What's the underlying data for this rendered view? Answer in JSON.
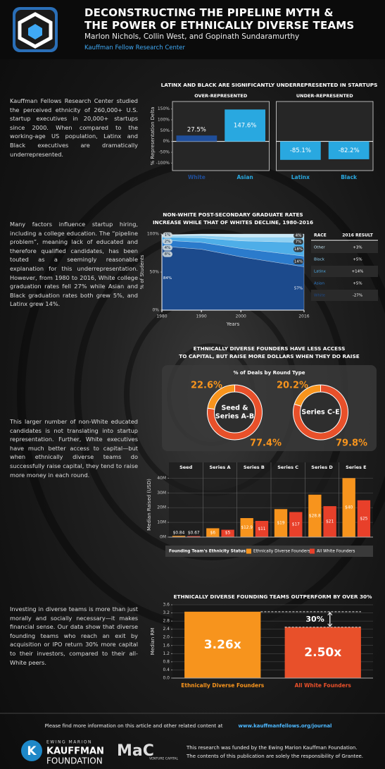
{
  "header": {
    "title_lines": [
      "DECONSTRUCTING THE PIPELINE MYTH &",
      "THE POWER OF ETHNICALLY DIVERSE TEAMS"
    ],
    "authors": "Marlon Nichols, Collin West, and Gopinath Sundaramurthy",
    "organization": "Kauffman Fellow Research Center"
  },
  "paragraphs": [
    "Kauffman Fellows Research Center studied the perceived ethnicity of 260,000+ U.S. startup executives in 20,000+ startups since 2000. When compared to the working-age US population, Latinx and Black executives are dramatically underrepresented.",
    "Many factors influence startup hiring, including a college education. The “pipeline problem”, meaning lack of educated and therefore qualified candidates, has been touted as a seemingly reasonable explanation for this underrepresentation. However, from 1980 to 2016, White college graduation rates fell 27% while Asian and Black graduation rates both grew 5%, and Latinx grew 14%.",
    "This larger number of non-White educated candidates is not translating into startup representation. Further, White executives have much better access to capital—but when ethnically diverse teams do successfully raise capital, they tend to raise more money in each round.",
    "Investing in diverse teams is more than just morally and socially necessary—it makes financial sense. Our data show that diverse founding teams who reach an exit by acquisition or IPO return 30% more capital to their investors, compared to their all-White peers."
  ],
  "chart_data": [
    {
      "type": "bar",
      "title": "LATINX AND BLACK ARE SIGNIFICANTLY UNDERREPRESENTED IN STARTUPS",
      "ylabel": "% Representation Delta",
      "ylim": [
        -115,
        165
      ],
      "yticks": [
        {
          "value": 150,
          "label": "150%"
        },
        {
          "value": 100,
          "label": "100%"
        },
        {
          "value": 50,
          "label": "50%"
        },
        {
          "value": 0,
          "label": "0%"
        },
        {
          "value": -50,
          "label": "-50%"
        },
        {
          "value": -100,
          "label": "-100%"
        }
      ],
      "grid": false,
      "panels": [
        {
          "title": "OVER-REPRESENTED",
          "categories": [
            "White",
            "Asian"
          ],
          "values": [
            27.5,
            147.6
          ],
          "value_labels": [
            "27.5%",
            "147.6%"
          ],
          "colors": [
            "#1f4e9a",
            "#29a8e0"
          ]
        },
        {
          "title": "UNDER-REPRESENTED",
          "categories": [
            "Latinx",
            "Black"
          ],
          "values": [
            -85.1,
            -82.2
          ],
          "value_labels": [
            "-85.1%",
            "-82.2%"
          ],
          "colors": [
            "#29a8e0",
            "#29a8e0"
          ]
        }
      ]
    },
    {
      "type": "area",
      "title_lines": [
        "NON-WHITE POST-SECONDARY GRADUATE RATES",
        "INCREASE WHILE THAT OF WHITES DECLINE, 1980-2016"
      ],
      "xlabel": "Years",
      "ylabel": "% of Students",
      "x": [
        1980,
        1990,
        2000,
        2016
      ],
      "xlim": [
        1980,
        2016
      ],
      "xticks": [
        1980,
        1990,
        2000,
        2016
      ],
      "ylim": [
        0,
        100
      ],
      "yticks": [
        {
          "value": 0,
          "label": "0%"
        },
        {
          "value": 50,
          "label": "50%"
        },
        {
          "value": 100,
          "label": "100%"
        }
      ],
      "series": [
        {
          "name": "Other",
          "color": "#c9e9f8",
          "values": [
            1,
            2,
            4,
            4
          ],
          "value_labels": [
            "1%",
            null,
            null,
            "4%"
          ]
        },
        {
          "name": "Black",
          "color": "#8fd0f2",
          "values": [
            2,
            3,
            5,
            7
          ],
          "value_labels": [
            "2%",
            null,
            null,
            "7%"
          ]
        },
        {
          "name": "Latinx",
          "color": "#4eaee8",
          "values": [
            4,
            6,
            10,
            18
          ],
          "value_labels": [
            "4%",
            null,
            null,
            "18%"
          ]
        },
        {
          "name": "Asian",
          "color": "#2b7bcc",
          "values": [
            8,
            9,
            11,
            14
          ],
          "value_labels": [
            "8%",
            null,
            null,
            "14%"
          ]
        },
        {
          "name": "White",
          "color": "#1c4a8c",
          "values": [
            84,
            80,
            70,
            57
          ],
          "value_labels": [
            "84%",
            null,
            null,
            "57%"
          ]
        }
      ],
      "table": {
        "columns": [
          "RACE",
          "2016 RESULT"
        ],
        "results": [
          "+3%",
          "+5%",
          "+14%",
          "+5%",
          "-27%"
        ]
      }
    },
    {
      "type": "pie",
      "title_lines": [
        "ETHNICALLY DIVERSE FOUNDERS HAVE LESS ACCESS",
        "TO CAPITAL, BUT RAISE MORE DOLLARS WHEN THEY DO RAISE"
      ],
      "subtitle": "% of Deals by Round Type",
      "colors": [
        "#f7941d",
        "#e8502a"
      ],
      "pies": [
        {
          "label_lines": [
            "Seed &",
            "Series A-B"
          ],
          "values": [
            22.6,
            77.4
          ],
          "value_labels": [
            "22.6%",
            "77.4%"
          ]
        },
        {
          "label_lines": [
            "Series C-E"
          ],
          "values": [
            20.2,
            79.8
          ],
          "value_labels": [
            "20.2%",
            "79.8%"
          ]
        }
      ]
    },
    {
      "type": "bar",
      "ylabel": "Median Raised (USD)",
      "categories": [
        "Seed",
        "Series A",
        "Series B",
        "Series C",
        "Series D",
        "Series E"
      ],
      "ylim": [
        0,
        44
      ],
      "yticks": [
        {
          "value": 0,
          "label": "0M"
        },
        {
          "value": 10,
          "label": "10M"
        },
        {
          "value": 20,
          "label": "20M"
        },
        {
          "value": 30,
          "label": "30M"
        },
        {
          "value": 40,
          "label": "40M"
        }
      ],
      "grid": true,
      "legend_title": "Founding Team's Ethnicity Status:",
      "series": [
        {
          "name": "Ethnically Diverse Founders",
          "color": "#f7941d",
          "values": [
            0.84,
            6,
            12.9,
            19,
            28.8,
            40
          ],
          "value_labels": [
            "$0.84",
            "$6",
            "$12.9",
            "$19",
            "$28.8",
            "$40"
          ]
        },
        {
          "name": "All White Founders",
          "color": "#e8402a",
          "values": [
            0.67,
            5,
            11,
            17,
            21,
            25
          ],
          "value_labels": [
            "$0.67",
            "$5",
            "$11",
            "$17",
            "$21",
            "$25"
          ]
        }
      ]
    },
    {
      "type": "bar",
      "title": "ETHNICALLY DIVERSE FOUNDING TEAMS OUTPERFORM BY OVER 30%",
      "ylabel": "Median RM",
      "categories": [
        "Ethnically Diverse Founders",
        "All White Founders"
      ],
      "values": [
        3.26,
        2.5
      ],
      "value_labels": [
        "3.26x",
        "2.50x"
      ],
      "colors": [
        "#f7941d",
        "#e8502a"
      ],
      "ylim": [
        0,
        3.6
      ],
      "yticks": [
        {
          "value": 0,
          "label": "0.0"
        },
        {
          "value": 0.4,
          "label": "0.4"
        },
        {
          "value": 0.8,
          "label": "0.8"
        },
        {
          "value": 1.2,
          "label": "1.2"
        },
        {
          "value": 1.6,
          "label": "1.6"
        },
        {
          "value": 2,
          "label": "2.0"
        },
        {
          "value": 2.4,
          "label": "2.4"
        },
        {
          "value": 2.8,
          "label": "2.8"
        },
        {
          "value": 3.2,
          "label": "3.2"
        },
        {
          "value": 3.6,
          "label": "3.6"
        }
      ],
      "grid": true,
      "annotation": "30%"
    }
  ],
  "footer": {
    "text": "Please find more information on this article and other related content at",
    "link": "www.kauffmanfellows.org/journal",
    "kauffman_logo": [
      "EWING MARION",
      "KAUFFMAN",
      "FOUNDATION"
    ],
    "mac_logo": {
      "mark": "MaC",
      "caption": "VENTURE CAPITAL"
    },
    "disclaimer": [
      "This research was funded by the Ewing Marion Kauffman Foundation.",
      "The contents of this publication are solely the responsibility of Grantee."
    ]
  }
}
